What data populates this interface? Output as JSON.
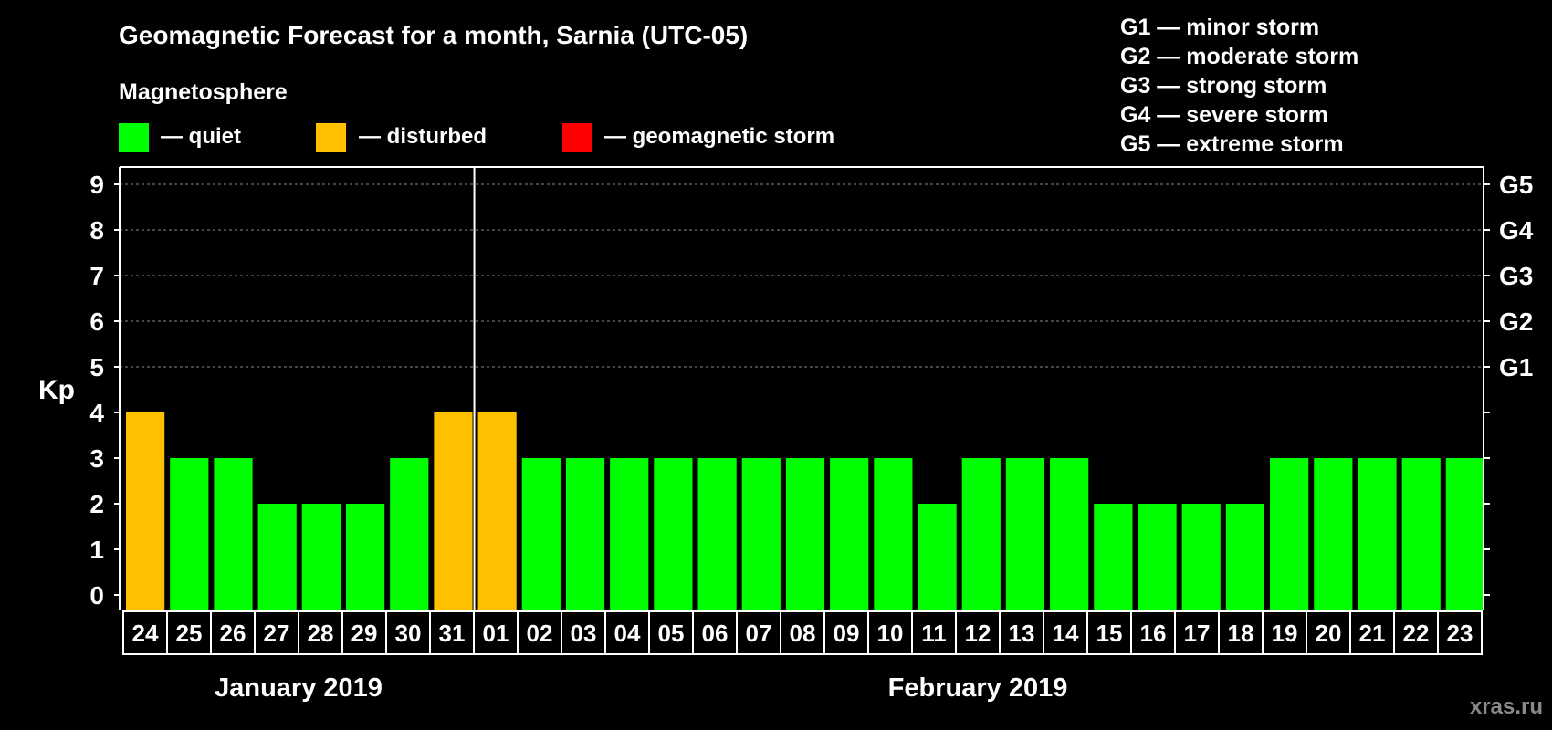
{
  "chart_data": {
    "type": "bar",
    "title": "Geomagnetic Forecast for a month, Sarnia (UTC-05)",
    "legend_title": "Magnetosphere",
    "legend": [
      {
        "label": "— quiet",
        "color": "#00ff00"
      },
      {
        "label": "— disturbed",
        "color": "#ffc000"
      },
      {
        "label": "— geomagnetic storm",
        "color": "#ff0000"
      }
    ],
    "storm_levels": [
      "G1 — minor storm",
      "G2 — moderate storm",
      "G3 — strong storm",
      "G4 — severe storm",
      "G5 — extreme storm"
    ],
    "ylabel": "Kp",
    "ylim": [
      0,
      9
    ],
    "yticks": [
      "0",
      "1",
      "2",
      "3",
      "4",
      "5",
      "6",
      "7",
      "8",
      "9"
    ],
    "right_labels": [
      {
        "kp": 5,
        "label": "G1"
      },
      {
        "kp": 6,
        "label": "G2"
      },
      {
        "kp": 7,
        "label": "G3"
      },
      {
        "kp": 8,
        "label": "G4"
      },
      {
        "kp": 9,
        "label": "G5"
      }
    ],
    "categories": [
      "24",
      "25",
      "26",
      "27",
      "28",
      "29",
      "30",
      "31",
      "01",
      "02",
      "03",
      "04",
      "05",
      "06",
      "07",
      "08",
      "09",
      "10",
      "11",
      "12",
      "13",
      "14",
      "15",
      "16",
      "17",
      "18",
      "19",
      "20",
      "21",
      "22",
      "23"
    ],
    "values": [
      4,
      3,
      3,
      2,
      2,
      2,
      3,
      4,
      4,
      3,
      3,
      3,
      3,
      3,
      3,
      3,
      3,
      3,
      2,
      3,
      3,
      3,
      2,
      2,
      2,
      2,
      3,
      3,
      3,
      3,
      3
    ],
    "month_divider_after_index": 7,
    "months": [
      {
        "label": "January 2019",
        "first_index": 0,
        "last_index": 7
      },
      {
        "label": "February 2019",
        "first_index": 8,
        "last_index": 30
      }
    ],
    "grid": true,
    "watermark": "xras.ru",
    "colors": {
      "quiet": "#00ff00",
      "disturbed": "#ffc000",
      "storm": "#ff0000",
      "background": "#000000",
      "axis": "#ffffff",
      "grid": "#8c8c8c"
    }
  }
}
